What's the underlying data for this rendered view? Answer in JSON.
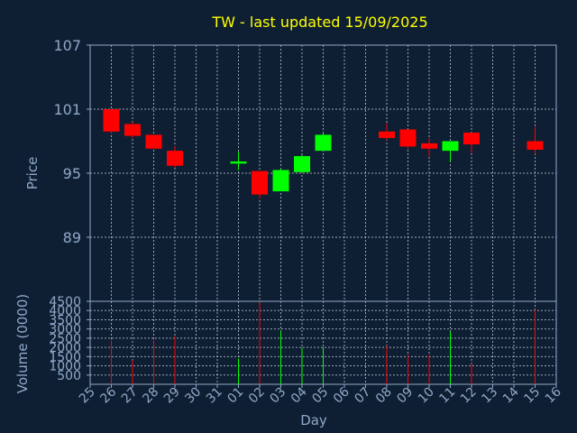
{
  "chart_data": {
    "type": "candlestick",
    "title": "TW - last updated 15/09/2025",
    "xlabel": "Day",
    "ylabel_price": "Price",
    "ylabel_volume": "Volume (0000)",
    "price_ylim": [
      83,
      107
    ],
    "price_yticks": [
      89,
      95,
      101,
      107
    ],
    "volume_ylim": [
      0,
      4500
    ],
    "volume_yticks": [
      500,
      1000,
      1500,
      2000,
      2500,
      3000,
      3500,
      4000,
      4500
    ],
    "x_ticks": [
      "25",
      "26",
      "27",
      "28",
      "29",
      "30",
      "31",
      "01",
      "02",
      "03",
      "04",
      "05",
      "06",
      "07",
      "08",
      "09",
      "10",
      "11",
      "12",
      "13",
      "14",
      "15",
      "16"
    ],
    "grid": true,
    "colors": {
      "up": "#00ff00",
      "down": "#ff0000",
      "title": "#ffff00",
      "axis": "#8fa8c8"
    },
    "candles": [
      {
        "day": "26",
        "open": 101.0,
        "high": 101.0,
        "low": 98.7,
        "close": 98.9,
        "volume": 2400
      },
      {
        "day": "27",
        "open": 99.6,
        "high": 99.8,
        "low": 98.3,
        "close": 98.5,
        "volume": 1300
      },
      {
        "day": "28",
        "open": 98.6,
        "high": 98.6,
        "low": 97.3,
        "close": 97.3,
        "volume": 2400
      },
      {
        "day": "29",
        "open": 97.1,
        "high": 97.5,
        "low": 95.5,
        "close": 95.7,
        "volume": 2600
      },
      {
        "day": "01",
        "open": 95.9,
        "high": 97.0,
        "low": 95.3,
        "close": 96.1,
        "volume": 1400
      },
      {
        "day": "02",
        "open": 95.2,
        "high": 95.2,
        "low": 92.6,
        "close": 93.0,
        "volume": 4450
      },
      {
        "day": "03",
        "open": 93.3,
        "high": 95.4,
        "low": 93.3,
        "close": 95.3,
        "volume": 2900
      },
      {
        "day": "04",
        "open": 95.1,
        "high": 96.7,
        "low": 95.1,
        "close": 96.6,
        "volume": 2000
      },
      {
        "day": "05",
        "open": 97.1,
        "high": 98.9,
        "low": 97.1,
        "close": 98.6,
        "volume": 2000
      },
      {
        "day": "08",
        "open": 98.9,
        "high": 99.7,
        "low": 98.1,
        "close": 98.3,
        "volume": 2100
      },
      {
        "day": "09",
        "open": 99.1,
        "high": 99.1,
        "low": 97.3,
        "close": 97.5,
        "volume": 1600
      },
      {
        "day": "10",
        "open": 97.8,
        "high": 98.3,
        "low": 96.6,
        "close": 97.3,
        "volume": 1600
      },
      {
        "day": "11",
        "open": 97.1,
        "high": 98.0,
        "low": 96.1,
        "close": 98.0,
        "volume": 2850
      },
      {
        "day": "12",
        "open": 98.8,
        "high": 98.8,
        "low": 96.9,
        "close": 97.7,
        "volume": 1100
      },
      {
        "day": "15",
        "open": 98.0,
        "high": 99.3,
        "low": 96.8,
        "close": 97.2,
        "volume": 4050
      }
    ]
  }
}
